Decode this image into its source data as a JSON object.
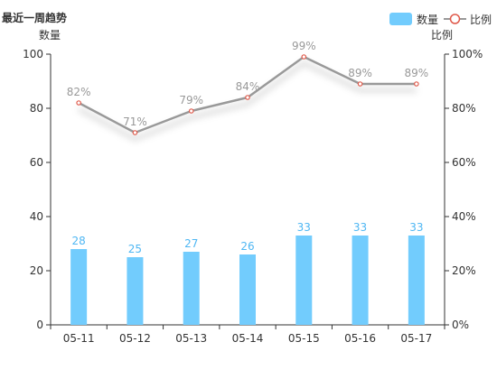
{
  "chart_title": "最近一周趋势",
  "legend": {
    "bar_label": "数量",
    "line_label": "比例"
  },
  "colors": {
    "bar": "#72ccfd",
    "bar_label": "#4fb7f3",
    "line": "#999999",
    "line_marker": "#e05a4b",
    "axis": "#333333"
  },
  "chart_data": {
    "type": "bar",
    "categories": [
      "05-11",
      "05-12",
      "05-13",
      "05-14",
      "05-15",
      "05-16",
      "05-17"
    ],
    "series": [
      {
        "name": "数量",
        "type": "bar",
        "axis": "left",
        "values": [
          28,
          25,
          27,
          26,
          33,
          33,
          33
        ]
      },
      {
        "name": "比例",
        "type": "line",
        "axis": "right",
        "values": [
          82,
          71,
          79,
          84,
          99,
          89,
          89
        ],
        "unit": "%"
      }
    ],
    "ylabel_left": "数量",
    "ylabel_right": "比例",
    "ylim_left": [
      0,
      100
    ],
    "ylim_right": [
      0,
      100
    ],
    "yticks_left": [
      0,
      20,
      40,
      60,
      80,
      100
    ],
    "yticks_right": [
      "0%",
      "20%",
      "40%",
      "60%",
      "80%",
      "100%"
    ],
    "grid": false,
    "legend_position": "top-right"
  }
}
